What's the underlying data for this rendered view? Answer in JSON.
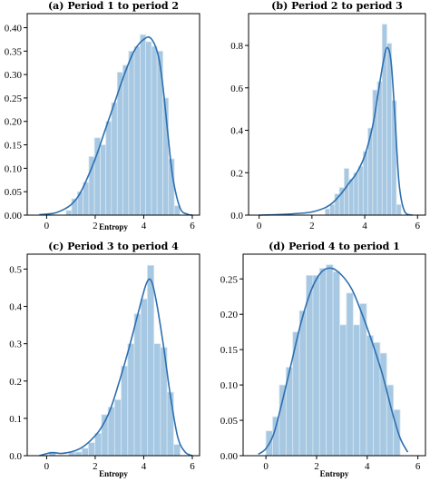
{
  "chart_data": [
    {
      "type": "bar",
      "title": "(a) Period 1 to period 2",
      "xlabel": "Entropy",
      "ylabel": "",
      "xlim": [
        -0.8,
        6.3
      ],
      "ylim": [
        0,
        0.43
      ],
      "xticks": [
        0,
        2,
        4,
        6
      ],
      "xtick_labels": [
        "0",
        "2",
        "4",
        "6"
      ],
      "yticks": [
        0.0,
        0.05,
        0.1,
        0.15,
        0.2,
        0.25,
        0.3,
        0.35,
        0.4
      ],
      "ytick_labels": [
        "0.00",
        "0.05",
        "0.10",
        "0.15",
        "0.20",
        "0.25",
        "0.30",
        "0.35",
        "0.40"
      ],
      "bin_edges": [
        0.8,
        1.03,
        1.27,
        1.5,
        1.74,
        1.97,
        2.21,
        2.44,
        2.67,
        2.91,
        3.14,
        3.38,
        3.61,
        3.85,
        4.08,
        4.32,
        4.55,
        4.79,
        5.02,
        5.26,
        5.49
      ],
      "values": [
        0.01,
        0.035,
        0.05,
        0.07,
        0.125,
        0.165,
        0.15,
        0.2,
        0.24,
        0.305,
        0.32,
        0.35,
        0.36,
        0.385,
        0.37,
        0.36,
        0.35,
        0.25,
        0.12,
        0.02
      ],
      "kde_x": [
        -0.3,
        0.3,
        0.7,
        1.0,
        1.3,
        1.6,
        2.0,
        2.4,
        2.8,
        3.2,
        3.6,
        4.0,
        4.3,
        4.6,
        4.8,
        5.0,
        5.2,
        5.5,
        5.8,
        6.0
      ],
      "kde_y": [
        0.001,
        0.004,
        0.012,
        0.022,
        0.04,
        0.07,
        0.12,
        0.18,
        0.24,
        0.3,
        0.35,
        0.375,
        0.377,
        0.34,
        0.27,
        0.17,
        0.08,
        0.015,
        0.002,
        0.0
      ]
    },
    {
      "type": "bar",
      "title": "(b) Period 2 to period 3",
      "xlabel": "",
      "ylabel": "",
      "xlim": [
        -0.4,
        6.3
      ],
      "ylim": [
        0,
        0.95
      ],
      "xticks": [
        0,
        2,
        4,
        6
      ],
      "xtick_labels": [
        "0",
        "2",
        "4",
        "6"
      ],
      "yticks": [
        0.0,
        0.2,
        0.4,
        0.6,
        0.8
      ],
      "ytick_labels": [
        "0.0",
        "0.2",
        "0.4",
        "0.6",
        "0.8"
      ],
      "bin_edges": [
        2.5,
        2.68,
        2.86,
        3.04,
        3.22,
        3.4,
        3.58,
        3.76,
        3.94,
        4.12,
        4.3,
        4.48,
        4.66,
        4.84,
        5.02,
        5.2,
        5.38
      ],
      "values": [
        0.03,
        0.05,
        0.1,
        0.13,
        0.22,
        0.17,
        0.2,
        0.23,
        0.3,
        0.41,
        0.59,
        0.63,
        0.9,
        0.81,
        0.54,
        0.05
      ],
      "kde_x": [
        0.0,
        0.8,
        1.5,
        2.0,
        2.5,
        2.8,
        3.1,
        3.4,
        3.7,
        4.0,
        4.3,
        4.5,
        4.7,
        4.85,
        5.0,
        5.15,
        5.3,
        5.5,
        5.8
      ],
      "kde_y": [
        0.0,
        0.003,
        0.008,
        0.015,
        0.035,
        0.06,
        0.1,
        0.15,
        0.2,
        0.28,
        0.42,
        0.57,
        0.72,
        0.79,
        0.72,
        0.45,
        0.15,
        0.02,
        0.0
      ]
    },
    {
      "type": "bar",
      "title": "(c) Period 3 to period 4",
      "xlabel": "Entropy",
      "ylabel": "",
      "xlim": [
        -0.8,
        6.3
      ],
      "ylim": [
        0,
        0.54
      ],
      "xticks": [
        0,
        2,
        4,
        6
      ],
      "xtick_labels": [
        "0",
        "2",
        "4",
        "6"
      ],
      "yticks": [
        0.0,
        0.1,
        0.2,
        0.3,
        0.4,
        0.5
      ],
      "ytick_labels": [
        "0.0",
        "0.1",
        "0.2",
        "0.3",
        "0.4",
        "0.5"
      ],
      "bin_edges": [
        0.1,
        0.37,
        0.64,
        0.91,
        1.18,
        1.45,
        1.72,
        1.99,
        2.26,
        2.53,
        2.8,
        3.07,
        3.34,
        3.61,
        3.88,
        4.15,
        4.42,
        4.69,
        4.96,
        5.23,
        5.5
      ],
      "values": [
        0.01,
        0.0,
        0.0,
        0.01,
        0.01,
        0.02,
        0.035,
        0.06,
        0.11,
        0.13,
        0.15,
        0.24,
        0.3,
        0.38,
        0.42,
        0.51,
        0.3,
        0.29,
        0.17,
        0.03
      ],
      "kde_x": [
        -0.3,
        0.2,
        0.6,
        1.0,
        1.4,
        1.8,
        2.2,
        2.6,
        3.0,
        3.4,
        3.8,
        4.1,
        4.3,
        4.5,
        4.8,
        5.1,
        5.4,
        5.7,
        6.0
      ],
      "kde_y": [
        0.0,
        0.008,
        0.006,
        0.01,
        0.02,
        0.04,
        0.07,
        0.12,
        0.2,
        0.29,
        0.39,
        0.46,
        0.47,
        0.42,
        0.3,
        0.16,
        0.05,
        0.01,
        0.0
      ]
    },
    {
      "type": "bar",
      "title": "(d) Period 4 to period 1",
      "xlabel": "Entropy",
      "ylabel": "",
      "xlim": [
        -0.9,
        6.3
      ],
      "ylim": [
        0,
        0.285
      ],
      "xticks": [
        0,
        2,
        4,
        6
      ],
      "xtick_labels": [
        "0",
        "2",
        "4",
        "6"
      ],
      "yticks": [
        0.0,
        0.05,
        0.1,
        0.15,
        0.2,
        0.25
      ],
      "ytick_labels": [
        "0.00",
        "0.05",
        "0.10",
        "0.15",
        "0.20",
        "0.25"
      ],
      "bin_edges": [
        0.0,
        0.265,
        0.53,
        0.795,
        1.06,
        1.325,
        1.59,
        1.855,
        2.12,
        2.385,
        2.65,
        2.915,
        3.18,
        3.445,
        3.71,
        3.975,
        4.24,
        4.505,
        4.77,
        5.035,
        5.3
      ],
      "values": [
        0.035,
        0.055,
        0.1,
        0.125,
        0.175,
        0.205,
        0.255,
        0.255,
        0.265,
        0.27,
        0.26,
        0.185,
        0.23,
        0.185,
        0.215,
        0.17,
        0.16,
        0.145,
        0.1,
        0.065
      ],
      "kde_x": [
        -0.3,
        0.0,
        0.3,
        0.6,
        1.0,
        1.4,
        1.8,
        2.2,
        2.6,
        3.0,
        3.4,
        3.8,
        4.2,
        4.6,
        5.0,
        5.3,
        5.6
      ],
      "kde_y": [
        0.002,
        0.01,
        0.03,
        0.07,
        0.13,
        0.19,
        0.235,
        0.26,
        0.265,
        0.255,
        0.235,
        0.2,
        0.16,
        0.115,
        0.06,
        0.025,
        0.005
      ]
    }
  ]
}
